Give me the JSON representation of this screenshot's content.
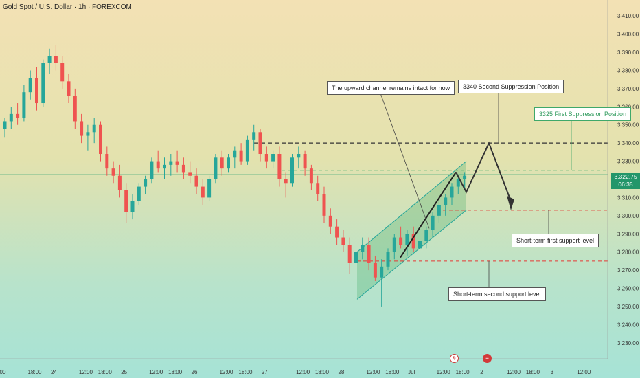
{
  "title": "Gold Spot / U.S. Dollar · 1h · FOREXCOM",
  "price": {
    "value": "3,322.75",
    "countdown": "06:35"
  },
  "colors": {
    "up": "#26a69a",
    "down": "#ef5350",
    "channel": "#26a69a",
    "channel_fill": "rgba(60,170,100,0.28)",
    "resistance_black": "#333333",
    "resistance_green": "#3fa86a",
    "support_red": "#e53935",
    "arrow": "#333333"
  },
  "icons": {
    "event_1": "lightning-icon",
    "event_2": "calendar-flag-icon"
  },
  "annotations": {
    "channel": "The upward channel remains intact for now",
    "second_suppression": "3340 Second Suppression Position",
    "first_suppression": "3325 First Suppression Position",
    "first_support": "Short-term first support level",
    "second_support": "Short-term second support level"
  },
  "chart_data": {
    "type": "candlestick",
    "title": "Gold Spot / U.S. Dollar · 1h · FOREXCOM",
    "y_axis": {
      "min": 3225,
      "max": 3415,
      "ticks": [
        "3,230.00",
        "3,240.00",
        "3,250.00",
        "3,260.00",
        "3,270.00",
        "3,280.00",
        "3,290.00",
        "3,300.00",
        "3,310.00",
        "3,320.00",
        "3,330.00",
        "3,340.00",
        "3,350.00",
        "3,360.00",
        "3,370.00",
        "3,380.00",
        "3,390.00",
        "3,400.00",
        "3,410.00"
      ],
      "tick_values": [
        3230,
        3240,
        3250,
        3260,
        3270,
        3280,
        3290,
        3300,
        3310,
        3320,
        3330,
        3340,
        3350,
        3360,
        3370,
        3380,
        3390,
        3400,
        3410
      ]
    },
    "x_axis": {
      "ticks": [
        "00",
        "18:00",
        "24",
        "12:00",
        "18:00",
        "25",
        "12:00",
        "18:00",
        "26",
        "12:00",
        "18:00",
        "27",
        "12:00",
        "18:00",
        "28",
        "12:00",
        "18:00",
        "Jul",
        "12:00",
        "18:00",
        "2",
        "12:00",
        "18:00",
        "3",
        "12:00"
      ],
      "tick_index": [
        0,
        5,
        8,
        13,
        16,
        19,
        24,
        27,
        30,
        35,
        38,
        41,
        47,
        50,
        53,
        58,
        61,
        64,
        69,
        72,
        75,
        80,
        83,
        86,
        91
      ]
    },
    "candles": [
      [
        3348,
        3354,
        3343,
        3352
      ],
      [
        3352,
        3360,
        3348,
        3356
      ],
      [
        3356,
        3362,
        3350,
        3354
      ],
      [
        3354,
        3372,
        3352,
        3368
      ],
      [
        3368,
        3380,
        3364,
        3376
      ],
      [
        3376,
        3382,
        3358,
        3362
      ],
      [
        3362,
        3386,
        3360,
        3384
      ],
      [
        3384,
        3392,
        3378,
        3388
      ],
      [
        3388,
        3394,
        3380,
        3384
      ],
      [
        3384,
        3388,
        3370,
        3374
      ],
      [
        3374,
        3378,
        3362,
        3366
      ],
      [
        3366,
        3370,
        3348,
        3352
      ],
      [
        3352,
        3356,
        3340,
        3344
      ],
      [
        3344,
        3350,
        3336,
        3346
      ],
      [
        3346,
        3354,
        3340,
        3350
      ],
      [
        3350,
        3352,
        3330,
        3334
      ],
      [
        3334,
        3338,
        3322,
        3326
      ],
      [
        3326,
        3330,
        3318,
        3322
      ],
      [
        3322,
        3328,
        3310,
        3314
      ],
      [
        3314,
        3318,
        3296,
        3302
      ],
      [
        3302,
        3312,
        3298,
        3308
      ],
      [
        3308,
        3318,
        3306,
        3316
      ],
      [
        3316,
        3322,
        3312,
        3320
      ],
      [
        3320,
        3332,
        3318,
        3330
      ],
      [
        3330,
        3336,
        3324,
        3326
      ],
      [
        3326,
        3332,
        3320,
        3328
      ],
      [
        3328,
        3334,
        3322,
        3330
      ],
      [
        3330,
        3336,
        3324,
        3328
      ],
      [
        3328,
        3332,
        3320,
        3324
      ],
      [
        3324,
        3330,
        3318,
        3322
      ],
      [
        3322,
        3326,
        3312,
        3316
      ],
      [
        3316,
        3320,
        3306,
        3310
      ],
      [
        3310,
        3322,
        3308,
        3320
      ],
      [
        3320,
        3334,
        3318,
        3332
      ],
      [
        3332,
        3336,
        3322,
        3326
      ],
      [
        3326,
        3334,
        3324,
        3332
      ],
      [
        3332,
        3338,
        3326,
        3336
      ],
      [
        3336,
        3340,
        3328,
        3330
      ],
      [
        3330,
        3344,
        3328,
        3342
      ],
      [
        3342,
        3350,
        3336,
        3346
      ],
      [
        3346,
        3348,
        3330,
        3334
      ],
      [
        3334,
        3338,
        3326,
        3330
      ],
      [
        3330,
        3336,
        3326,
        3334
      ],
      [
        3334,
        3338,
        3316,
        3320
      ],
      [
        3320,
        3324,
        3310,
        3318
      ],
      [
        3318,
        3334,
        3316,
        3332
      ],
      [
        3332,
        3338,
        3326,
        3334
      ],
      [
        3334,
        3336,
        3322,
        3326
      ],
      [
        3326,
        3328,
        3314,
        3318
      ],
      [
        3318,
        3322,
        3308,
        3312
      ],
      [
        3312,
        3316,
        3296,
        3300
      ],
      [
        3300,
        3304,
        3290,
        3294
      ],
      [
        3294,
        3298,
        3284,
        3288
      ],
      [
        3288,
        3292,
        3280,
        3284
      ],
      [
        3284,
        3288,
        3268,
        3274
      ],
      [
        3274,
        3284,
        3258,
        3280
      ],
      [
        3280,
        3288,
        3276,
        3284
      ],
      [
        3284,
        3288,
        3270,
        3274
      ],
      [
        3274,
        3278,
        3264,
        3266
      ],
      [
        3266,
        3276,
        3250,
        3272
      ],
      [
        3272,
        3282,
        3270,
        3280
      ],
      [
        3280,
        3290,
        3276,
        3288
      ],
      [
        3288,
        3294,
        3282,
        3284
      ],
      [
        3284,
        3292,
        3278,
        3290
      ],
      [
        3290,
        3294,
        3280,
        3282
      ],
      [
        3282,
        3290,
        3276,
        3286
      ],
      [
        3286,
        3294,
        3282,
        3292
      ],
      [
        3292,
        3302,
        3288,
        3300
      ],
      [
        3300,
        3308,
        3296,
        3306
      ],
      [
        3306,
        3312,
        3300,
        3310
      ],
      [
        3310,
        3318,
        3306,
        3316
      ],
      [
        3316,
        3322,
        3312,
        3320
      ],
      [
        3320,
        3324,
        3314,
        3322
      ]
    ],
    "lines": [
      {
        "label": "3340 Second Suppression Position",
        "value": 3340,
        "style": "dashed"
      },
      {
        "label": "3325 First Suppression Position",
        "value": 3325,
        "style": "dashed"
      },
      {
        "label": "Short-term first support level",
        "value": 3303,
        "style": "dashed"
      },
      {
        "label": "Short-term second support level",
        "value": 3275,
        "style": "dashed"
      }
    ],
    "current_price": 3322.75
  }
}
